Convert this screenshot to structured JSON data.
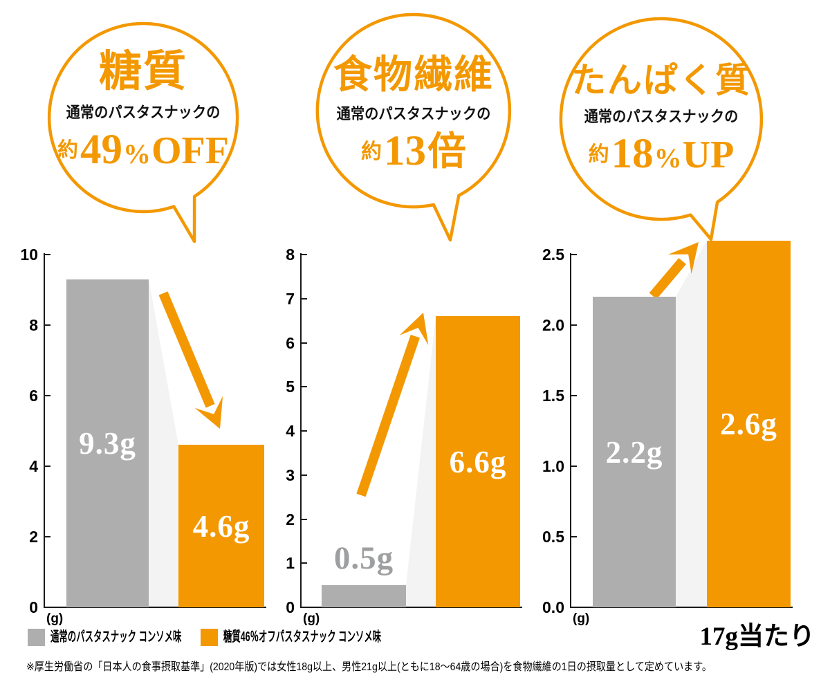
{
  "colors": {
    "orange": "#F39800",
    "bar_gray": "#AEAEAE",
    "wedge": "#F3F3F3",
    "gray_label": "#9E9FA0",
    "ink": "#1A1A1A"
  },
  "serving_label": "17g当たり",
  "footnote": "※厚生労働省の「日本人の食事摂取基準」(2020年版)では女性18g以上、男性21g以上(ともに18～64歳の場合)を食物繊維の1日の摂取量として定めています。",
  "legend": {
    "items": [
      {
        "label": "通常のパスタスナック コンソメ味",
        "color": "#AEAEAE"
      },
      {
        "label": "糖質46％オフパスタスナック コンソメ味",
        "color": "#F39800"
      }
    ]
  },
  "chart_data": [
    {
      "type": "bar",
      "nutrient": "糖質",
      "bubble": {
        "title": "糖質",
        "subtitle": "通常のパスタスナックの",
        "stat_prefix": "約",
        "stat_value": "49",
        "stat_unit": "%",
        "stat_suffix": "OFF"
      },
      "categories": [
        "通常のパスタスナック コンソメ味",
        "糖質46％オフパスタスナック コンソメ味"
      ],
      "values": [
        9.3,
        4.6
      ],
      "bar_labels": [
        "9.3g",
        "4.6g"
      ],
      "ylabel": "(g)",
      "ylim": [
        0,
        10
      ],
      "yticks": [
        0,
        2,
        4,
        6,
        8,
        10
      ],
      "ytick_labels": [
        "0",
        "2",
        "4",
        "6",
        "8",
        "10"
      ],
      "grid": false,
      "trend": "down"
    },
    {
      "type": "bar",
      "nutrient": "食物繊維",
      "bubble": {
        "title": "食物繊維",
        "subtitle": "通常のパスタスナックの",
        "stat_prefix": "約",
        "stat_value": "13",
        "stat_unit": "",
        "stat_suffix": "倍"
      },
      "categories": [
        "通常のパスタスナック コンソメ味",
        "糖質46％オフパスタスナック コンソメ味"
      ],
      "values": [
        0.5,
        6.6
      ],
      "bar_labels": [
        "0.5g",
        "6.6g"
      ],
      "ylabel": "(g)",
      "ylim": [
        0,
        8
      ],
      "yticks": [
        0,
        1,
        2,
        3,
        4,
        5,
        6,
        7,
        8
      ],
      "ytick_labels": [
        "0",
        "1",
        "2",
        "3",
        "4",
        "5",
        "6",
        "7",
        "8"
      ],
      "grid": false,
      "trend": "up"
    },
    {
      "type": "bar",
      "nutrient": "たんぱく質",
      "bubble": {
        "title": "たんぱく質",
        "subtitle": "通常のパスタスナックの",
        "stat_prefix": "約",
        "stat_value": "18",
        "stat_unit": "%",
        "stat_suffix": "UP"
      },
      "categories": [
        "通常のパスタスナック コンソメ味",
        "糖質46％オフパスタスナック コンソメ味"
      ],
      "values": [
        2.2,
        2.6
      ],
      "bar_labels": [
        "2.2g",
        "2.6g"
      ],
      "ylabel": "(g)",
      "ylim": [
        0,
        2.5
      ],
      "yticks": [
        0,
        0.5,
        1.0,
        1.5,
        2.0,
        2.5
      ],
      "ytick_labels": [
        "0.0",
        "0.5",
        "1.0",
        "1.5",
        "2.0",
        "2.5"
      ],
      "grid": false,
      "trend": "up"
    }
  ]
}
